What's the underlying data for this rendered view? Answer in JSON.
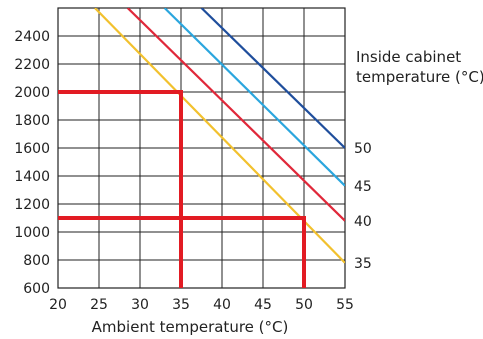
{
  "chart_data": {
    "type": "line",
    "title": "",
    "xlabel": "Ambient temperature (°C)",
    "ylabel": "",
    "xlim": [
      20,
      55
    ],
    "ylim": [
      600,
      2600
    ],
    "x_ticks": [
      20,
      25,
      30,
      35,
      40,
      45,
      50,
      55
    ],
    "y_ticks": [
      600,
      800,
      1000,
      1200,
      1400,
      1600,
      1800,
      2000,
      2200,
      2400
    ],
    "grid": true,
    "legend": {
      "title_lines": [
        "Inside cabinet",
        "temperature (°C)"
      ],
      "placement": "right"
    },
    "series": [
      {
        "name": "35",
        "color": "#f2c12e",
        "x": [
          24.5,
          55
        ],
        "y": [
          2600,
          780
        ]
      },
      {
        "name": "40",
        "color": "#e0283a",
        "x": [
          28.5,
          55
        ],
        "y": [
          2600,
          1080
        ]
      },
      {
        "name": "45",
        "color": "#2ba6de",
        "x": [
          33,
          55
        ],
        "y": [
          2600,
          1330
        ]
      },
      {
        "name": "50",
        "color": "#1f4e9c",
        "x": [
          37.5,
          55
        ],
        "y": [
          2600,
          1600
        ]
      }
    ],
    "example_lines": {
      "color": "#e21b23",
      "paths": [
        {
          "x": [
            20,
            35,
            35
          ],
          "y": [
            2000,
            2000,
            600
          ]
        },
        {
          "x": [
            20,
            50,
            50
          ],
          "y": [
            1100,
            1100,
            600
          ]
        }
      ]
    }
  }
}
